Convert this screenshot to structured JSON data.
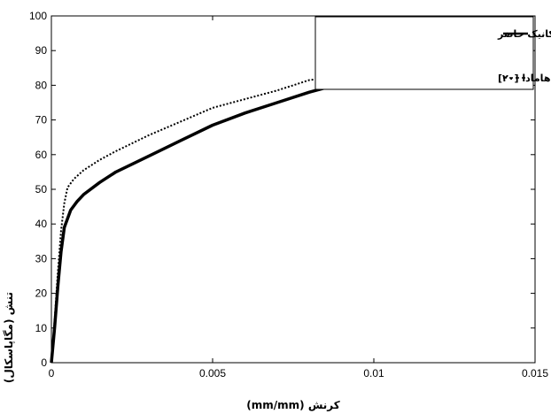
{
  "chart_data": {
    "type": "line",
    "xlabel": "کرنش (mm/mm)",
    "ylabel": "تنش (مگاپاسکال)",
    "xlim": [
      0,
      0.015
    ],
    "ylim": [
      0,
      100
    ],
    "x_ticks": [
      "0",
      "0.005",
      "0.01",
      "0.015"
    ],
    "y_ticks": [
      "0",
      "10",
      "20",
      "30",
      "40",
      "50",
      "60",
      "70",
      "80",
      "90",
      "100"
    ],
    "legend_position": "top-right",
    "series": [
      {
        "name": "مدل مایکرومکانیک حاضر",
        "style": "solid",
        "color": "#000000",
        "x": [
          0,
          0.0001,
          0.0002,
          0.0003,
          0.0004,
          0.0006,
          0.0008,
          0.001,
          0.0015,
          0.002,
          0.003,
          0.004,
          0.005,
          0.006,
          0.007,
          0.008,
          0.009,
          0.0095
        ],
        "y": [
          0,
          10,
          22,
          32,
          39,
          44,
          46.5,
          48.5,
          52,
          55,
          59.5,
          64,
          68.5,
          72,
          75,
          78,
          80.5,
          81
        ]
      },
      {
        "name": "هامادا [۲۰]",
        "style": "dashed",
        "color": "#000000",
        "x": [
          0,
          0.0001,
          0.0002,
          0.0003,
          0.0004,
          0.0005,
          0.0007,
          0.001,
          0.0015,
          0.002,
          0.003,
          0.004,
          0.005,
          0.006,
          0.007,
          0.008,
          0.0085
        ],
        "y": [
          0,
          12,
          26,
          38,
          46,
          50.5,
          53,
          55.5,
          58.5,
          61,
          65.5,
          69.5,
          73.5,
          76,
          78.5,
          81.5,
          82
        ]
      }
    ]
  }
}
